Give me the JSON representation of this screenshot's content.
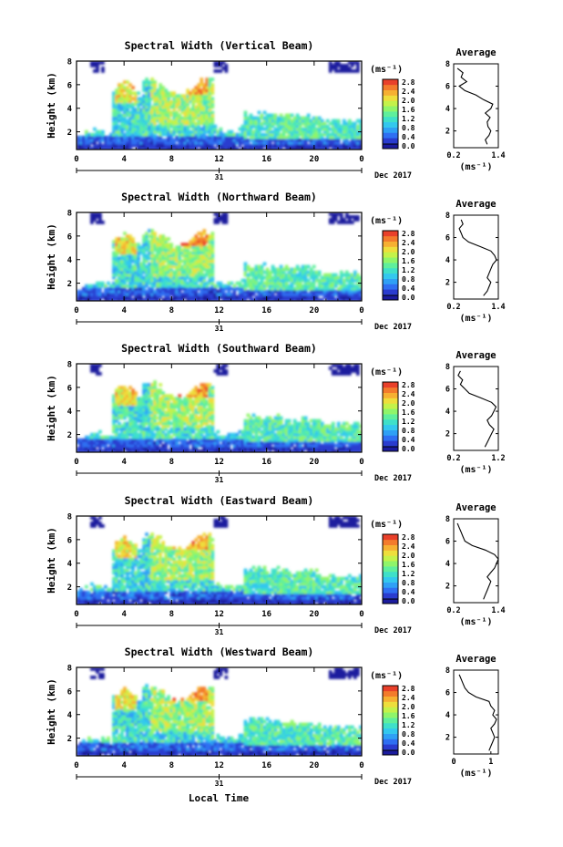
{
  "figure": {
    "xlabel_bottom": "Local Time",
    "date_label": "Dec 2017",
    "day_label": "31",
    "unit_label": "(ms⁻¹)",
    "side_unit_label": "(ms⁻¹)",
    "height_label": "Height (km)",
    "average_title": "Average"
  },
  "colormap": [
    "#1b1b9e",
    "#2a3ccf",
    "#2f6ff2",
    "#2fa0f5",
    "#33c8ee",
    "#3fe0c9",
    "#5fef9c",
    "#8ff56a",
    "#c4f24a",
    "#eede3c",
    "#f6b032",
    "#f37b2c",
    "#e9402a"
  ],
  "colorbar_labels": [
    "0.0",
    "0.4",
    "0.8",
    "1.2",
    "1.6",
    "2.0",
    "2.4",
    "2.8"
  ],
  "chart_data": [
    {
      "type": "heatmap",
      "title": "Spectral Width (Vertical Beam)",
      "xlabel": "Local Time",
      "ylabel": "Height (km)",
      "x_ticks": [
        "0",
        "4",
        "8",
        "12",
        "16",
        "20",
        "0"
      ],
      "y_ticks": [
        "2",
        "4",
        "6",
        "8"
      ],
      "xlim": [
        0,
        24
      ],
      "ylim": [
        0.5,
        8
      ],
      "colorbar": {
        "label": "(ms⁻¹)",
        "ticks": [
          "0.0",
          "0.4",
          "0.8",
          "1.2",
          "1.6",
          "2.0",
          "2.4",
          "2.8"
        ],
        "range": [
          0,
          2.8
        ]
      },
      "average_profile": {
        "title": "Average",
        "xlabel": "(ms⁻¹)",
        "x_ticks": [
          "0.2",
          "1.4"
        ],
        "xlim": [
          0.2,
          1.4
        ],
        "ylim": [
          0.5,
          8
        ],
        "y_ticks": [
          "2",
          "4",
          "6",
          "8"
        ],
        "heights": [
          0.8,
          1.2,
          1.6,
          2.0,
          2.4,
          2.8,
          3.2,
          3.6,
          4.0,
          4.4,
          4.8,
          5.2,
          5.6,
          6.0,
          6.4,
          6.8,
          7.2,
          7.6
        ],
        "values": [
          1.1,
          1.05,
          1.15,
          1.2,
          1.12,
          1.1,
          1.18,
          1.05,
          1.2,
          1.25,
          1.0,
          0.8,
          0.5,
          0.35,
          0.55,
          0.4,
          0.45,
          0.3
        ]
      }
    },
    {
      "type": "heatmap",
      "title": "Spectral Width (Northward Beam)",
      "xlabel": "Local Time",
      "ylabel": "Height (km)",
      "x_ticks": [
        "0",
        "4",
        "8",
        "12",
        "16",
        "20",
        "0"
      ],
      "y_ticks": [
        "2",
        "4",
        "6",
        "8"
      ],
      "xlim": [
        0,
        24
      ],
      "ylim": [
        0.5,
        8
      ],
      "colorbar": {
        "label": "(ms⁻¹)",
        "ticks": [
          "0.0",
          "0.4",
          "0.8",
          "1.2",
          "1.6",
          "2.0",
          "2.4",
          "2.8"
        ],
        "range": [
          0,
          2.8
        ]
      },
      "average_profile": {
        "title": "Average",
        "xlabel": "(ms⁻¹)",
        "x_ticks": [
          "0.2",
          "1.4"
        ],
        "xlim": [
          0.2,
          1.4
        ],
        "ylim": [
          0.5,
          8
        ],
        "y_ticks": [
          "2",
          "4",
          "6",
          "8"
        ],
        "heights": [
          0.8,
          1.2,
          1.6,
          2.0,
          2.4,
          2.8,
          3.2,
          3.6,
          4.0,
          4.4,
          4.8,
          5.2,
          5.6,
          6.0,
          6.4,
          6.8,
          7.2,
          7.6
        ],
        "values": [
          1.0,
          1.1,
          1.15,
          1.2,
          1.1,
          1.15,
          1.2,
          1.25,
          1.35,
          1.3,
          1.2,
          0.9,
          0.6,
          0.45,
          0.4,
          0.35,
          0.45,
          0.4
        ]
      }
    },
    {
      "type": "heatmap",
      "title": "Spectral Width (Southward Beam)",
      "xlabel": "Local Time",
      "ylabel": "Height (km)",
      "x_ticks": [
        "0",
        "4",
        "8",
        "12",
        "16",
        "20",
        "0"
      ],
      "y_ticks": [
        "2",
        "4",
        "6",
        "8"
      ],
      "xlim": [
        0,
        24
      ],
      "ylim": [
        0.5,
        8
      ],
      "colorbar": {
        "label": "(ms⁻¹)",
        "ticks": [
          "0.0",
          "0.4",
          "0.8",
          "1.2",
          "1.6",
          "2.0",
          "2.4",
          "2.8"
        ],
        "range": [
          0,
          2.8
        ]
      },
      "average_profile": {
        "title": "Average",
        "xlabel": "(ms⁻¹)",
        "x_ticks": [
          "0.2",
          "1.2"
        ],
        "xlim": [
          0.2,
          1.2
        ],
        "ylim": [
          0.5,
          8
        ],
        "y_ticks": [
          "2",
          "4",
          "6",
          "8"
        ],
        "heights": [
          0.8,
          1.2,
          1.6,
          2.0,
          2.4,
          2.8,
          3.2,
          3.6,
          4.0,
          4.4,
          4.8,
          5.2,
          5.6,
          6.0,
          6.4,
          6.8,
          7.2,
          7.6
        ],
        "values": [
          0.9,
          0.95,
          1.0,
          1.05,
          1.1,
          1.0,
          0.95,
          1.05,
          1.1,
          1.15,
          1.05,
          0.8,
          0.55,
          0.45,
          0.35,
          0.4,
          0.3,
          0.35
        ]
      }
    },
    {
      "type": "heatmap",
      "title": "Spectral Width (Eastward Beam)",
      "xlabel": "Local Time",
      "ylabel": "Height (km)",
      "x_ticks": [
        "0",
        "4",
        "8",
        "12",
        "16",
        "20",
        "0"
      ],
      "y_ticks": [
        "2",
        "4",
        "6",
        "8"
      ],
      "xlim": [
        0,
        24
      ],
      "ylim": [
        0.5,
        8
      ],
      "colorbar": {
        "label": "(ms⁻¹)",
        "ticks": [
          "0.0",
          "0.4",
          "0.8",
          "1.2",
          "1.6",
          "2.0",
          "2.4",
          "2.8"
        ],
        "range": [
          0,
          2.8
        ]
      },
      "average_profile": {
        "title": "Average",
        "xlabel": "(ms⁻¹)",
        "x_ticks": [
          "0.2",
          "1.4"
        ],
        "xlim": [
          0.2,
          1.4
        ],
        "ylim": [
          0.5,
          8
        ],
        "y_ticks": [
          "2",
          "4",
          "6",
          "8"
        ],
        "heights": [
          0.8,
          1.2,
          1.6,
          2.0,
          2.4,
          2.8,
          3.2,
          3.6,
          4.0,
          4.4,
          4.8,
          5.2,
          5.6,
          6.0,
          6.4,
          6.8,
          7.2,
          7.6
        ],
        "values": [
          1.0,
          1.05,
          1.1,
          1.15,
          1.2,
          1.1,
          1.2,
          1.3,
          1.35,
          1.4,
          1.3,
          1.05,
          0.7,
          0.5,
          0.45,
          0.4,
          0.35,
          0.3
        ]
      }
    },
    {
      "type": "heatmap",
      "title": "Spectral Width (Westward Beam)",
      "xlabel": "Local Time",
      "ylabel": "Height (km)",
      "x_ticks": [
        "0",
        "4",
        "8",
        "12",
        "16",
        "20",
        "0"
      ],
      "y_ticks": [
        "2",
        "4",
        "6",
        "8"
      ],
      "xlim": [
        0,
        24
      ],
      "ylim": [
        0.5,
        8
      ],
      "colorbar": {
        "label": "(ms⁻¹)",
        "ticks": [
          "0.0",
          "0.4",
          "0.8",
          "1.2",
          "1.6",
          "2.0",
          "2.4",
          "2.8"
        ],
        "range": [
          0,
          2.8
        ]
      },
      "average_profile": {
        "title": "Average",
        "xlabel": "(ms⁻¹)",
        "x_ticks": [
          "0",
          "1"
        ],
        "xlim": [
          0,
          1.2
        ],
        "ylim": [
          0.5,
          8
        ],
        "y_ticks": [
          "2",
          "4",
          "6",
          "8"
        ],
        "heights": [
          0.8,
          1.2,
          1.6,
          2.0,
          2.4,
          2.8,
          3.2,
          3.6,
          4.0,
          4.4,
          4.8,
          5.2,
          5.6,
          6.0,
          6.4,
          6.8,
          7.2,
          7.6
        ],
        "values": [
          0.95,
          1.0,
          1.05,
          1.1,
          1.05,
          1.0,
          1.1,
          1.15,
          1.05,
          1.1,
          1.0,
          0.95,
          0.6,
          0.4,
          0.3,
          0.25,
          0.2,
          0.15
        ]
      }
    }
  ]
}
